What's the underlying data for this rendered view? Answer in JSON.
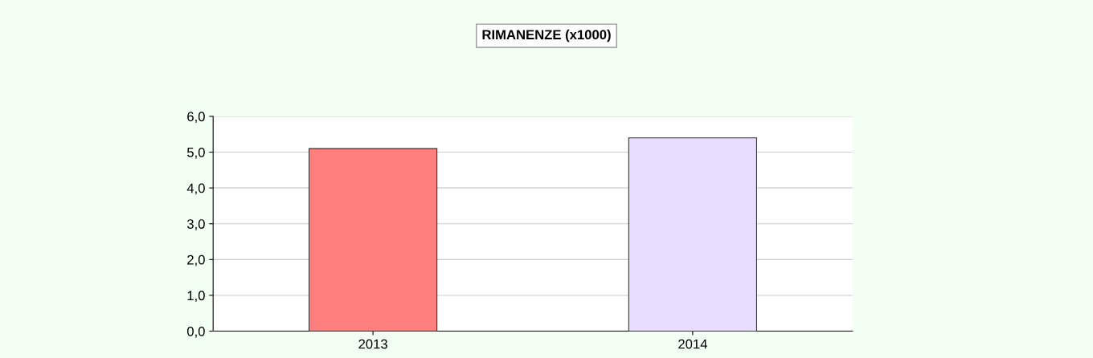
{
  "chart_data": {
    "type": "bar",
    "title": "RIMANENZE (x1000)",
    "categories": [
      "2013",
      "2014"
    ],
    "values": [
      5.1,
      5.4
    ],
    "colors": [
      "#ff7f7f",
      "#e8dcff"
    ],
    "ylim": [
      0,
      6
    ],
    "yticks": [
      {
        "value": 0,
        "label": "0,0"
      },
      {
        "value": 1,
        "label": "1,0"
      },
      {
        "value": 2,
        "label": "2,0"
      },
      {
        "value": 3,
        "label": "3,0"
      },
      {
        "value": 4,
        "label": "4,0"
      },
      {
        "value": 5,
        "label": "5,0"
      },
      {
        "value": 6,
        "label": "6,0"
      }
    ],
    "grid": "y",
    "legend": false
  }
}
